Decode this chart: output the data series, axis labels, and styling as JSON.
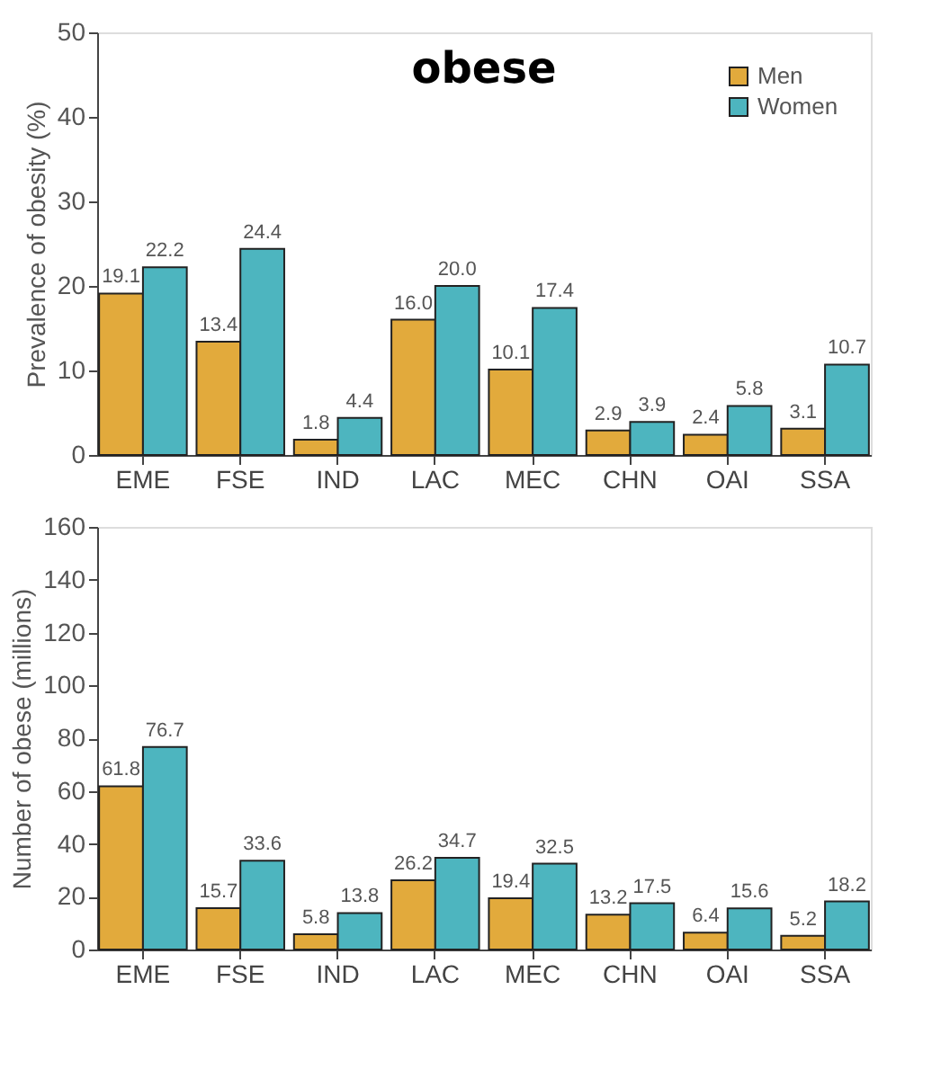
{
  "chart_data": [
    {
      "type": "bar",
      "title": "obese",
      "ylabel": "Prevalence of obesity (%)",
      "categories": [
        "EME",
        "FSE",
        "IND",
        "LAC",
        "MEC",
        "CHN",
        "OAI",
        "SSA"
      ],
      "series": [
        {
          "name": "Men",
          "color": "#e2aa3c",
          "values": [
            19.1,
            13.4,
            1.8,
            16.0,
            10.1,
            2.9,
            2.4,
            3.1
          ],
          "value_labels": [
            "19.1",
            "13.4",
            "1.8",
            "16.0",
            "10.1",
            "2.9",
            "2.4",
            "3.1"
          ]
        },
        {
          "name": "Women",
          "color": "#4db5bf",
          "values": [
            22.2,
            24.4,
            4.4,
            20.0,
            17.4,
            3.9,
            5.8,
            10.7
          ],
          "value_labels": [
            "22.2",
            "24.4",
            "4.4",
            "20.0",
            "17.4",
            "3.9",
            "5.8",
            "10.7"
          ]
        }
      ],
      "ylim": [
        0,
        50
      ],
      "yticks": [
        0,
        10,
        20,
        30,
        40,
        50
      ],
      "grid": false,
      "legend": "top right"
    },
    {
      "type": "bar",
      "ylabel": "Number of obese (millions)",
      "categories": [
        "EME",
        "FSE",
        "IND",
        "LAC",
        "MEC",
        "CHN",
        "OAI",
        "SSA"
      ],
      "series": [
        {
          "name": "Men",
          "color": "#e2aa3c",
          "values": [
            61.8,
            15.7,
            5.8,
            26.2,
            19.4,
            13.2,
            6.4,
            5.2
          ]
        },
        {
          "name": "Women",
          "color": "#4db5bf",
          "values": [
            76.7,
            33.6,
            13.8,
            34.7,
            32.5,
            17.5,
            15.6,
            18.2
          ]
        }
      ],
      "ylim": [
        0,
        160
      ],
      "yticks": [
        0,
        20,
        40,
        60,
        80,
        100,
        120,
        140,
        160
      ],
      "data_labels": true,
      "grid": false,
      "legend": false
    }
  ]
}
